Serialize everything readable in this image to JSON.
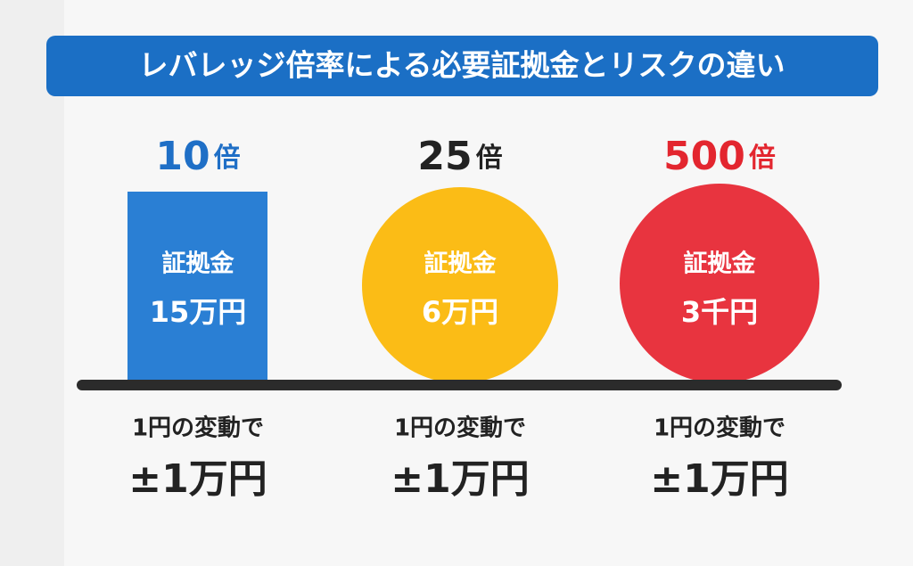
{
  "title": "レバレッジ倍率による必要証拠金とリスクの違い",
  "columns": [
    {
      "leverage": "10",
      "unit": "倍",
      "shape_label": "証拠金",
      "shape_amount": "15万円",
      "change_text": "1円の変動で",
      "risk": "±1万円"
    },
    {
      "leverage": "25",
      "unit": "倍",
      "shape_label": "証拠金",
      "shape_amount": "6万円",
      "change_text": "1円の変動で",
      "risk": "±1万円"
    },
    {
      "leverage": "500",
      "unit": "倍",
      "shape_label": "証拠金",
      "shape_amount": "3千円",
      "change_text": "1円の変動で",
      "risk": "±1万円"
    }
  ]
}
